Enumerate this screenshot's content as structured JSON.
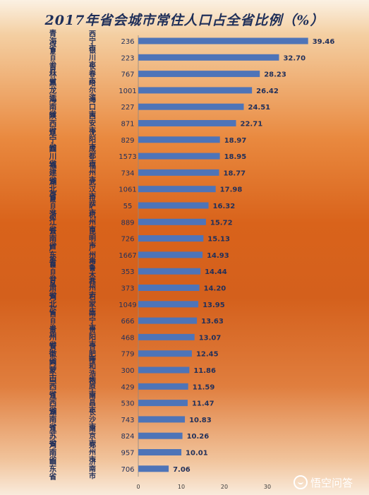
{
  "title": "2017年省会城市常住人口占全省比例（%）",
  "watermark": "悟空问答",
  "chart_data": {
    "type": "bar",
    "title": "2017年省会城市常住人口占全省比例（%）",
    "xlim": [
      0,
      40
    ],
    "x_ticks": [
      "0",
      "10",
      "20",
      "30"
    ],
    "columns": [
      "province",
      "city",
      "population",
      "share"
    ],
    "rows": [
      {
        "province": "青海省",
        "city": "西宁市",
        "population": "236",
        "share": 39.46,
        "label": "39.46"
      },
      {
        "province": "宁夏自治区",
        "city": "银川市",
        "population": "223",
        "share": 32.7,
        "label": "32.70"
      },
      {
        "province": "吉林省",
        "city": "长春市",
        "population": "767",
        "share": 28.23,
        "label": "28.23"
      },
      {
        "province": "黑龙江",
        "city": "哈尔滨",
        "population": "1001",
        "share": 26.42,
        "label": "26.42"
      },
      {
        "province": "海南省",
        "city": "海口市",
        "population": "227",
        "share": 24.51,
        "label": "24.51"
      },
      {
        "province": "陕西省",
        "city": "西安市",
        "population": "871",
        "share": 22.71,
        "label": "22.71"
      },
      {
        "province": "辽宁省",
        "city": "沈阳市",
        "population": "829",
        "share": 18.97,
        "label": "18.97"
      },
      {
        "province": "四川省",
        "city": "成都市",
        "population": "1573",
        "share": 18.95,
        "label": "18.95"
      },
      {
        "province": "福建省",
        "city": "福州市",
        "population": "734",
        "share": 18.77,
        "label": "18.77"
      },
      {
        "province": "湖北省",
        "city": "武汉市",
        "population": "1061",
        "share": 17.98,
        "label": "17.98"
      },
      {
        "province": "西藏自治区",
        "city": "拉萨市",
        "population": "55",
        "share": 16.32,
        "label": "16.32"
      },
      {
        "province": "浙江省",
        "city": "杭州市",
        "population": "889",
        "share": 15.72,
        "label": "15.72"
      },
      {
        "province": "云南省",
        "city": "昆明市",
        "population": "726",
        "share": 15.13,
        "label": "15.13"
      },
      {
        "province": "广东省",
        "city": "广州市",
        "population": "1667",
        "share": 14.93,
        "label": "14.93"
      },
      {
        "province": "新疆自治区",
        "city": "乌鲁木齐",
        "population": "353",
        "share": 14.44,
        "label": "14.44"
      },
      {
        "province": "甘肃省",
        "city": "兰州市",
        "population": "373",
        "share": 14.2,
        "label": "14.20"
      },
      {
        "province": "河北省",
        "city": "石家庄",
        "population": "1049",
        "share": 13.95,
        "label": "13.95"
      },
      {
        "province": "广西自治区",
        "city": "南宁市",
        "population": "666",
        "share": 13.63,
        "label": "13.63"
      },
      {
        "province": "贵州省",
        "city": "贵阳市",
        "population": "468",
        "share": 13.07,
        "label": "13.07"
      },
      {
        "province": "安徽省",
        "city": "合肥市",
        "population": "779",
        "share": 12.45,
        "label": "12.45"
      },
      {
        "province": "内蒙古",
        "city": "呼和浩特",
        "population": "300",
        "share": 11.86,
        "label": "11.86"
      },
      {
        "province": "山西省",
        "city": "太原市",
        "population": "429",
        "share": 11.59,
        "label": "11.59"
      },
      {
        "province": "江西省",
        "city": "南昌市",
        "population": "530",
        "share": 11.47,
        "label": "11.47"
      },
      {
        "province": "湖南省",
        "city": "长沙市",
        "population": "743",
        "share": 10.83,
        "label": "10.83"
      },
      {
        "province": "江苏省",
        "city": "南京市",
        "population": "824",
        "share": 10.26,
        "label": "10.26"
      },
      {
        "province": "河南省",
        "city": "郑州市",
        "population": "957",
        "share": 10.01,
        "label": "10.01"
      },
      {
        "province": "山东省",
        "city": "济南市",
        "population": "706",
        "share": 7.06,
        "label": "7.06"
      }
    ],
    "colors": {
      "bar": "#4e74b8",
      "text": "#22305a"
    }
  }
}
